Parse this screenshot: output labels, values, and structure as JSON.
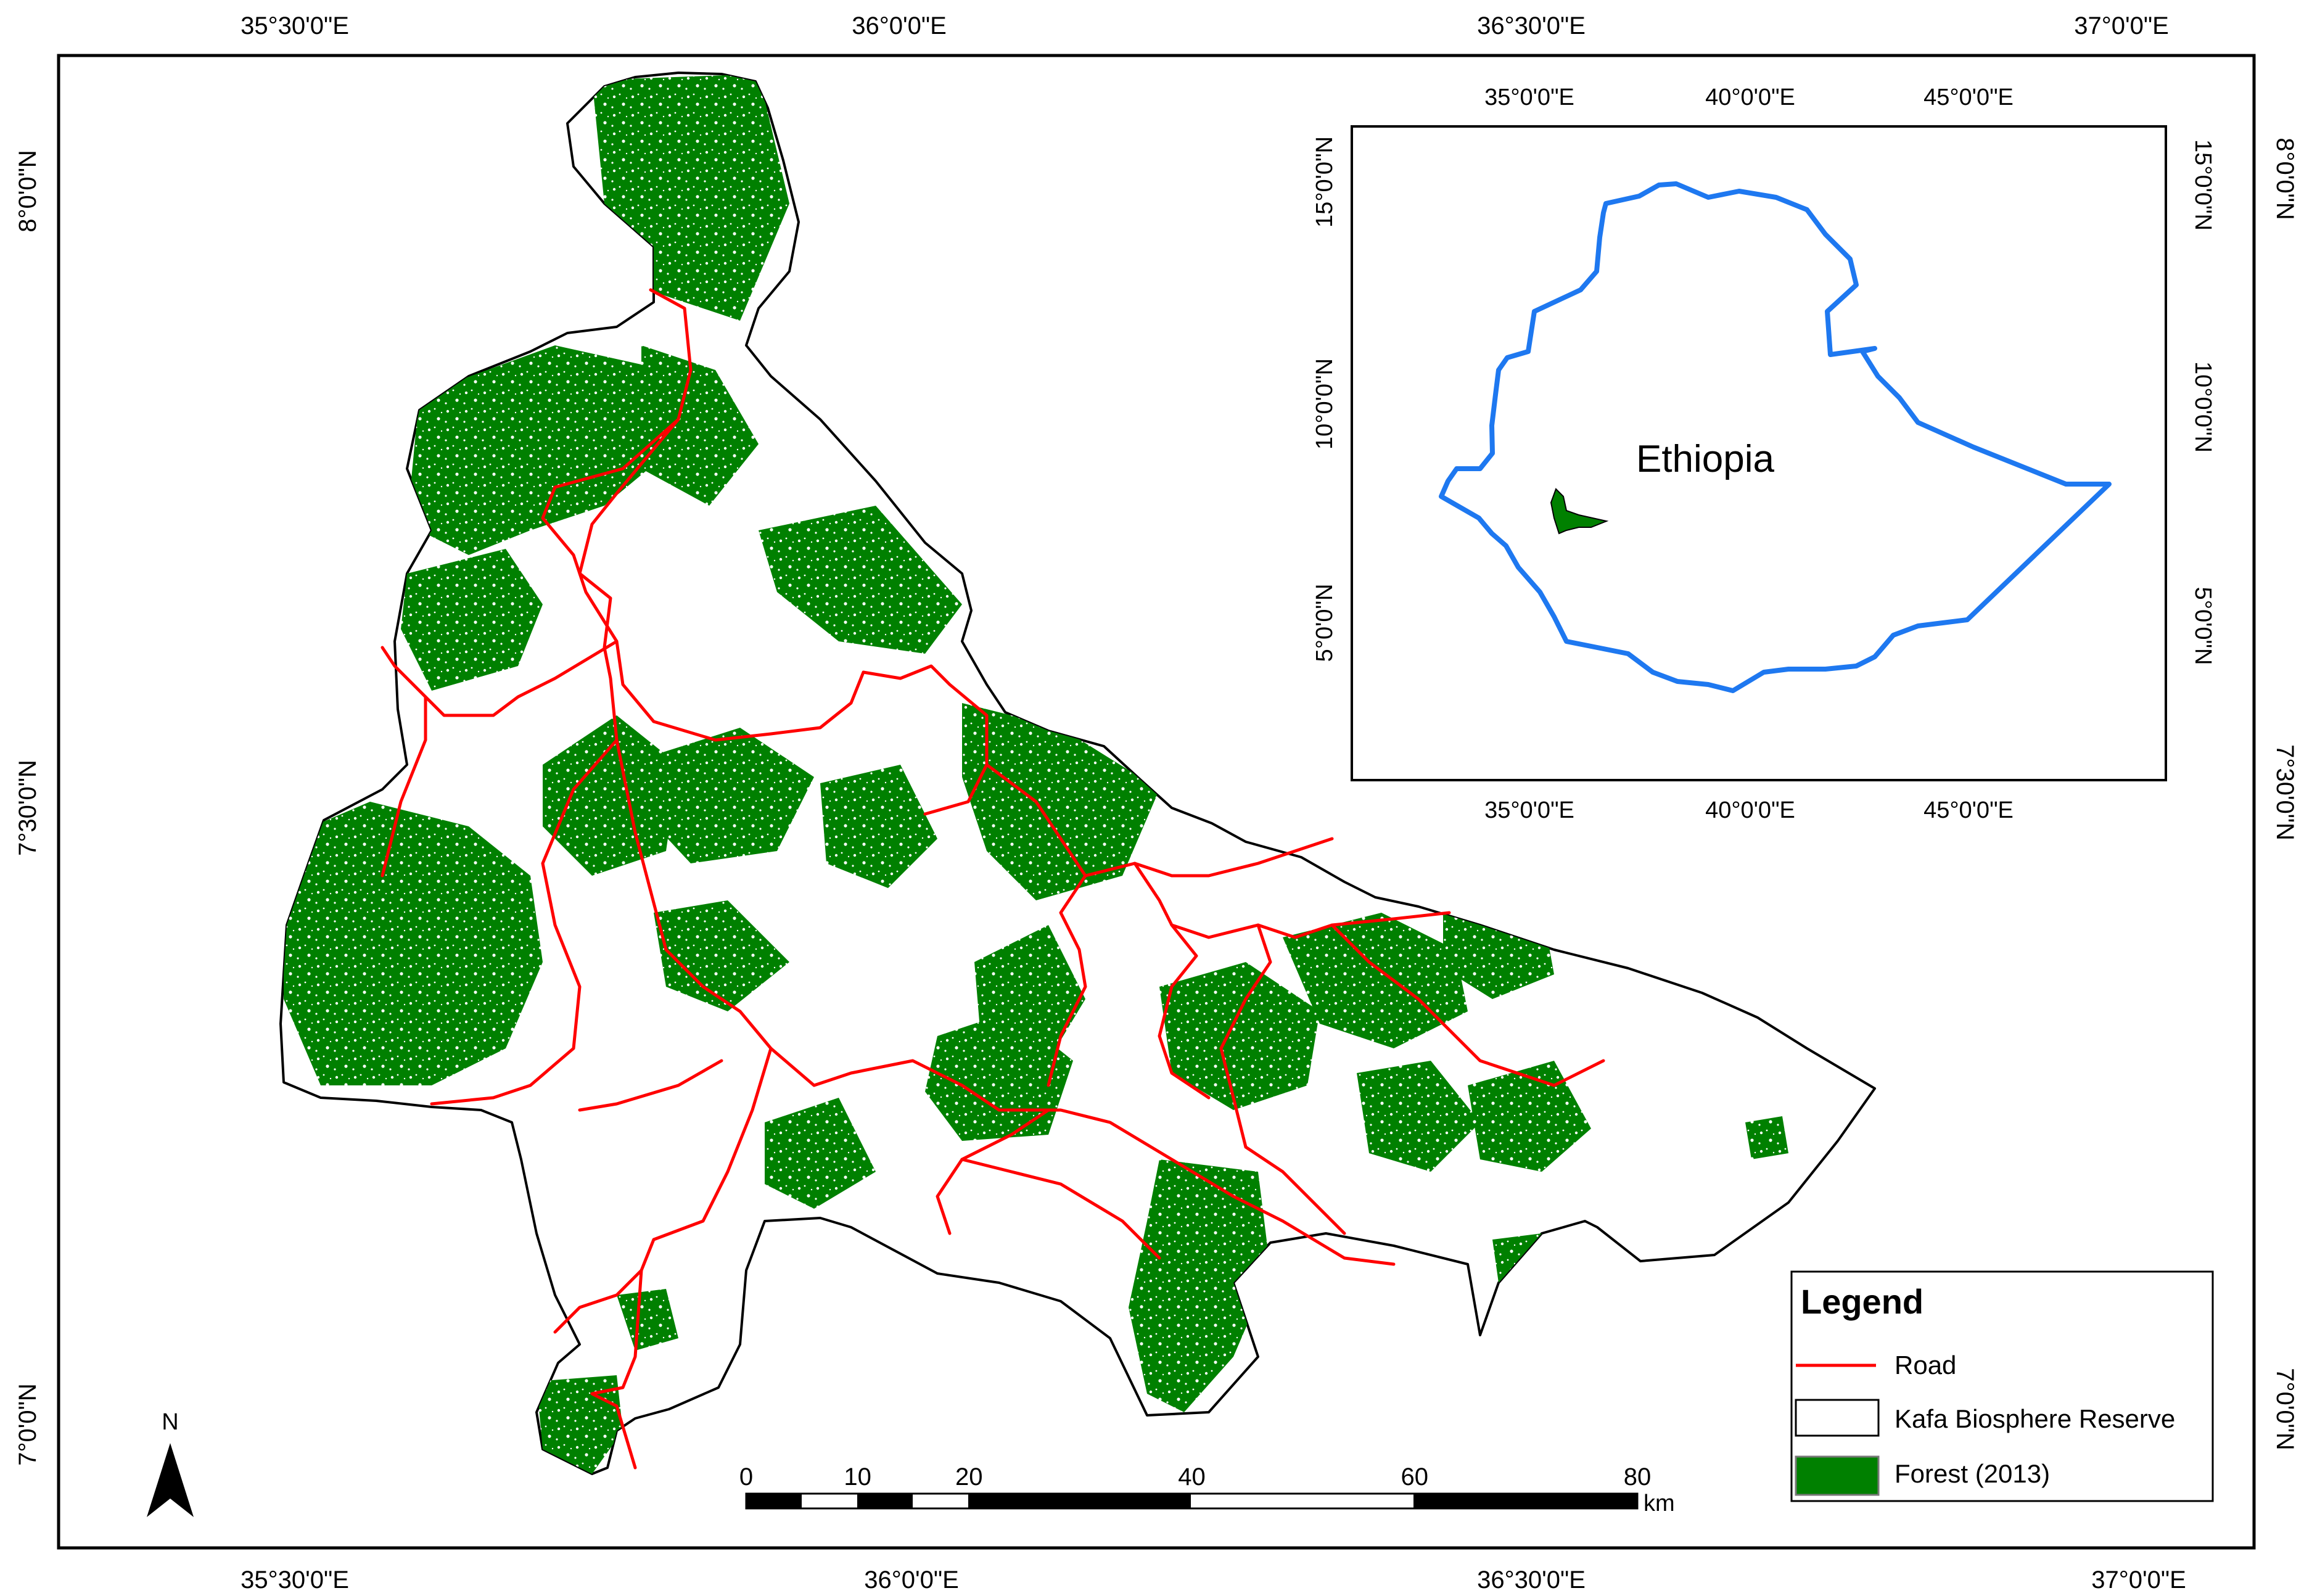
{
  "main_map": {
    "lon_labels": [
      "35°30'0\"E",
      "36°0'0\"E",
      "36°30'0\"E",
      "37°0'0\"E"
    ],
    "lat_labels": [
      "8°0'0\"N",
      "7°30'0\"N",
      "7°0'0\"N"
    ]
  },
  "inset": {
    "country_label": "Ethiopia",
    "lon_labels": [
      "35°0'0\"E",
      "40°0'0\"E",
      "45°0'0\"E"
    ],
    "lat_labels": [
      "15°0'0\"N",
      "10°0'0\"N",
      "5°0'0\"N"
    ],
    "country_color": "#1e78f0"
  },
  "north_arrow": {
    "label": "N"
  },
  "scale_bar": {
    "ticks": [
      "0",
      "10",
      "20",
      "40",
      "60",
      "80"
    ],
    "tick_values_km": [
      0,
      10,
      20,
      40,
      60,
      80
    ],
    "unit": "km"
  },
  "legend": {
    "title": "Legend",
    "items": [
      {
        "label": "Road",
        "symbol": "line",
        "color": "#ff0000"
      },
      {
        "label": "Kafa Biosphere Reserve",
        "symbol": "box",
        "color": "#ffffff"
      },
      {
        "label": "Forest (2013)",
        "symbol": "box",
        "color": "#008000"
      }
    ]
  }
}
